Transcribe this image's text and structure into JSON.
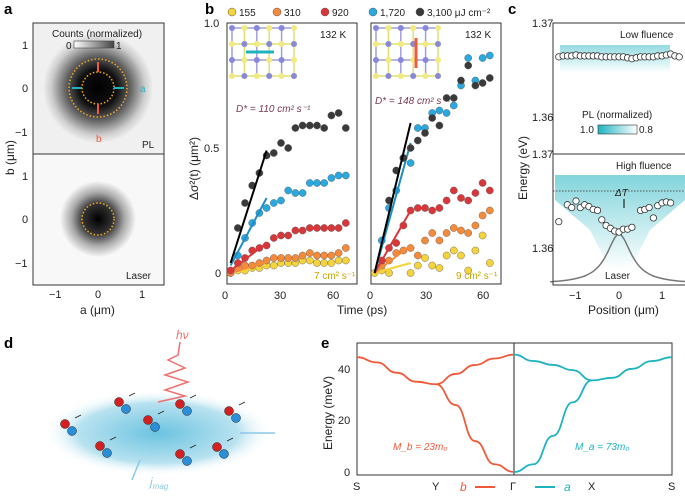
{
  "panels": {
    "a": "a",
    "b": "b",
    "c": "c",
    "d": "d",
    "e": "e"
  },
  "colors": {
    "s155": "#f5d33a",
    "s310": "#f58b3a",
    "s920": "#d9363a",
    "s1720": "#2aa9e0",
    "s3100": "#3a3a3a",
    "cyan": "#1fb3c0",
    "red": "#f05a3a"
  },
  "chart_data": [
    {
      "panel": "a",
      "type": "heatmap",
      "colorbar": {
        "title": "Counts (normalized)",
        "min": "0",
        "max": "1"
      },
      "xlabel": "a (μm)",
      "ylabel": "b (μm)",
      "xticks": [
        "−1",
        "0",
        "1"
      ],
      "yticks": [
        "1",
        "0",
        "−1"
      ],
      "xlim": [
        -1.5,
        1.5
      ],
      "ylim": [
        -1.5,
        1.5
      ],
      "subpanels": [
        {
          "label": "PL",
          "axis_a": "a",
          "axis_b": "b"
        },
        {
          "label": "Laser"
        }
      ]
    },
    {
      "panel": "b",
      "type": "scatter",
      "legend": [
        "155",
        "310",
        "920",
        "1,720",
        "3,100 μJ cm⁻²"
      ],
      "xlabel": "Time (ps)",
      "ylabel": "Δσ²(t) (μm²)",
      "xticks": [
        "0",
        "30",
        "60"
      ],
      "yticks": [
        "0",
        "0.5",
        "1.0"
      ],
      "xlim": [
        0,
        73
      ],
      "ylim": [
        -0.05,
        1.0
      ],
      "plots": [
        {
          "temperature": "132 K",
          "direction": "a",
          "D_high": "D* = 110 cm² s⁻¹",
          "D_low": "7 cm² s⁻¹",
          "series": [
            {
              "name": "155",
              "t": [
                2,
                6,
                10,
                14,
                18,
                22,
                26,
                30,
                34,
                38,
                42,
                46,
                50,
                54,
                58,
                62,
                66
              ],
              "y": [
                0,
                0.01,
                0.01,
                0.02,
                0.02,
                0.03,
                0.03,
                0.04,
                0.04,
                0.04,
                0.05,
                0.05,
                0.04,
                0.04,
                0.04,
                0.05,
                0.05
              ],
              "fit": [
                [
                  2,
                  0
                ],
                [
                  22,
                  0.03
                ]
              ]
            },
            {
              "name": "310",
              "t": [
                2,
                6,
                10,
                14,
                18,
                22,
                26,
                30,
                34,
                38,
                42,
                46,
                50,
                54,
                58,
                62,
                66
              ],
              "y": [
                0,
                0.02,
                0.03,
                0.03,
                0.04,
                0.05,
                0.06,
                0.06,
                0.06,
                0.06,
                0.07,
                0.08,
                0.07,
                0.07,
                0.07,
                0.08,
                0.1
              ],
              "fit": [
                [
                  2,
                  0
                ],
                [
                  22,
                  0.045
                ]
              ]
            },
            {
              "name": "920",
              "t": [
                2,
                6,
                10,
                14,
                18,
                22,
                26,
                30,
                34,
                38,
                42,
                46,
                50,
                54,
                58,
                62,
                66
              ],
              "y": [
                0.01,
                0.04,
                0.06,
                0.09,
                0.1,
                0.11,
                0.14,
                0.15,
                0.15,
                0.17,
                0.17,
                0.18,
                0.18,
                0.18,
                0.18,
                0.18,
                0.2
              ],
              "fit": [
                [
                  2,
                  0.01
                ],
                [
                  22,
                  0.12
                ]
              ]
            },
            {
              "name": "1,720",
              "t": [
                6,
                10,
                14,
                18,
                22,
                26,
                30,
                34,
                38,
                42,
                46,
                50,
                54,
                58,
                62,
                66
              ],
              "y": [
                0.07,
                0.14,
                0.2,
                0.24,
                0.26,
                0.28,
                0.29,
                0.33,
                0.32,
                0.32,
                0.36,
                0.36,
                0.36,
                0.38,
                0.39,
                0.39
              ],
              "fit": [
                [
                  2,
                  0.03
                ],
                [
                  22,
                  0.3
                ]
              ]
            },
            {
              "name": "3,100",
              "t": [
                6,
                10,
                14,
                18,
                22,
                26,
                30,
                34,
                38,
                42,
                46,
                50,
                54,
                58,
                62,
                66
              ],
              "y": [
                0.18,
                0.28,
                0.35,
                0.4,
                0.47,
                0.48,
                0.52,
                0.5,
                0.58,
                0.59,
                0.59,
                0.59,
                0.58,
                0.63,
                0.64,
                0.58
              ],
              "fit": [
                [
                  2,
                  0.04
                ],
                [
                  22,
                  0.49
                ]
              ]
            }
          ]
        },
        {
          "temperature": "132 K",
          "direction": "b",
          "D_high": "D* = 148 cm² s⁻¹",
          "D_low": "9 cm² s⁻¹",
          "series": [
            {
              "name": "155",
              "t": [
                2,
                6,
                10,
                22,
                26,
                30,
                34,
                38,
                42,
                46,
                50,
                54,
                58,
                62,
                66
              ],
              "y": [
                0,
                0.01,
                0,
                0,
                0.03,
                0.06,
                0.03,
                0.02,
                0.07,
                0.09,
                0.07,
                0.01,
                0.09,
                0.15,
                0.04
              ],
              "fit": [
                [
                  2,
                  0
                ],
                [
                  22,
                  0.04
                ]
              ]
            },
            {
              "name": "310",
              "t": [
                6,
                10,
                14,
                18,
                22,
                26,
                30,
                34,
                38,
                42,
                46,
                50,
                54,
                58,
                62,
                66
              ],
              "y": [
                0.03,
                0.05,
                0.08,
                0.09,
                0.1,
                0.07,
                0.13,
                0.16,
                0.13,
                0.16,
                0.18,
                0.17,
                0.16,
                0.19,
                0.23,
                0.25
              ],
              "fit": [
                [
                  2,
                  0
                ],
                [
                  22,
                  0.11
                ]
              ]
            },
            {
              "name": "920",
              "t": [
                6,
                10,
                14,
                18,
                22,
                26,
                30,
                34,
                38,
                42,
                46,
                50,
                54,
                58,
                62,
                66
              ],
              "y": [
                0.05,
                0.1,
                0.12,
                0.19,
                0.25,
                0.26,
                0.26,
                0.25,
                0.26,
                0.29,
                0.33,
                0.3,
                0.29,
                0.32,
                0.36,
                0.33
              ],
              "fit": [
                [
                  2,
                  0
                ],
                [
                  22,
                  0.25
                ]
              ]
            },
            {
              "name": "1,720",
              "t": [
                6,
                10,
                14,
                18,
                22,
                26,
                30,
                34,
                38,
                42,
                46,
                50,
                54,
                58,
                62,
                66
              ],
              "y": [
                0.13,
                0.26,
                0.33,
                0.46,
                0.44,
                0.58,
                0.58,
                0.64,
                0.65,
                0.64,
                0.67,
                0.75,
                0.86,
                0.77,
                0.86,
                0.87
              ],
              "fit": [
                [
                  2,
                  0
                ],
                [
                  22,
                  0.52
                ]
              ]
            },
            {
              "name": "3,100",
              "t": [
                10,
                14,
                18,
                22,
                26,
                30,
                34,
                38,
                42,
                46,
                50,
                54,
                58,
                62,
                66
              ],
              "y": [
                0.29,
                0.41,
                0.46,
                0.5,
                0.53,
                0.56,
                0.62,
                0.59,
                0.7,
                0.7,
                0.77,
                0.83,
                0.75,
                0.76,
                0.78
              ],
              "fit": [
                [
                  2,
                  0
                ],
                [
                  22,
                  0.6
                ]
              ]
            }
          ]
        }
      ]
    },
    {
      "panel": "c",
      "type": "scatter",
      "xlabel": "Position (μm)",
      "ylabel": "Energy (eV)",
      "xticks": [
        "−1",
        "0",
        "1"
      ],
      "yticks": [
        "1.37",
        "1.36"
      ],
      "xlim": [
        -1.5,
        1.5
      ],
      "ylim": [
        1.356,
        1.37
      ],
      "colorbar": {
        "title": "PL (normalized)",
        "min": "1.0",
        "max": "0.8"
      },
      "plots": [
        {
          "title": "Low fluence",
          "x": [
            -1.4,
            -1.3,
            -1.2,
            -1.1,
            -1.0,
            -0.9,
            -0.8,
            -0.7,
            -0.6,
            -0.5,
            -0.4,
            -0.3,
            -0.2,
            -0.1,
            0,
            0.1,
            0.2,
            0.3,
            0.4,
            0.5,
            0.6,
            0.7,
            0.8,
            0.9,
            1.0,
            1.1,
            1.2,
            1.3,
            1.4
          ],
          "y": [
            1.3664,
            1.3665,
            1.3665,
            1.3665,
            1.3666,
            1.3665,
            1.3665,
            1.3665,
            1.3665,
            1.3665,
            1.3664,
            1.3664,
            1.3664,
            1.3664,
            1.3664,
            1.3664,
            1.3663,
            1.3662,
            1.3663,
            1.3664,
            1.3664,
            1.3664,
            1.3664,
            1.3665,
            1.3665,
            1.3666,
            1.3667,
            1.3665,
            1.3664
          ]
        },
        {
          "title": "High fluence",
          "annotation": "ΔT",
          "laser_label": "Laser",
          "reference_energy": 1.3661,
          "x": [
            -1.4,
            -1.2,
            -1.1,
            -1.0,
            -0.9,
            -0.8,
            -0.7,
            -0.6,
            -0.5,
            -0.4,
            -0.3,
            -0.2,
            -0.1,
            0,
            0.1,
            0.2,
            0.3,
            0.5,
            0.6,
            0.7,
            0.8,
            0.9,
            1.0,
            1.1,
            1.2
          ],
          "y": [
            1.3628,
            1.3646,
            1.3643,
            1.365,
            1.3643,
            1.3646,
            1.3644,
            1.3641,
            1.364,
            1.363,
            1.3624,
            1.3621,
            1.3618,
            1.3617,
            1.362,
            1.362,
            1.3622,
            1.364,
            1.3641,
            1.3643,
            1.3632,
            1.3645,
            1.3648,
            1.3649,
            1.3648
          ]
        }
      ]
    },
    {
      "panel": "e",
      "type": "line",
      "ylabel": "Energy (meV)",
      "xticks": [
        "S",
        "Y",
        "Γ",
        "X",
        "S"
      ],
      "yticks": [
        "0",
        "20",
        "40"
      ],
      "ylim": [
        0,
        50
      ],
      "direction_b": "b",
      "direction_a": "a",
      "mass_b": "M_b = 23m₀",
      "mass_a": "M_a = 73m₀",
      "series": [
        {
          "name": "b-upper",
          "k": [
            0,
            0.25,
            0.5,
            0.75,
            1,
            1.25,
            1.5,
            1.75,
            2
          ],
          "y": [
            44.5,
            42.5,
            38.5,
            35,
            34,
            38,
            41.5,
            44,
            45.5
          ]
        },
        {
          "name": "b-lower",
          "k": [
            1,
            1.25,
            1.5,
            1.75,
            2
          ],
          "y": [
            34,
            26,
            12,
            3,
            0
          ]
        },
        {
          "name": "a-upper",
          "k": [
            2,
            2.25,
            2.5,
            2.75,
            3,
            3.25,
            3.5,
            3.75,
            4
          ],
          "y": [
            45.5,
            43,
            41.5,
            39.5,
            35.5,
            36.5,
            40,
            43,
            44.5
          ]
        },
        {
          "name": "a-lower",
          "k": [
            2,
            2.25,
            2.5,
            2.75,
            3
          ],
          "y": [
            0,
            3,
            14,
            27,
            35.5
          ]
        }
      ]
    }
  ],
  "illustration": {
    "photon": "hν",
    "current": "j",
    "current_sub": "mag"
  }
}
